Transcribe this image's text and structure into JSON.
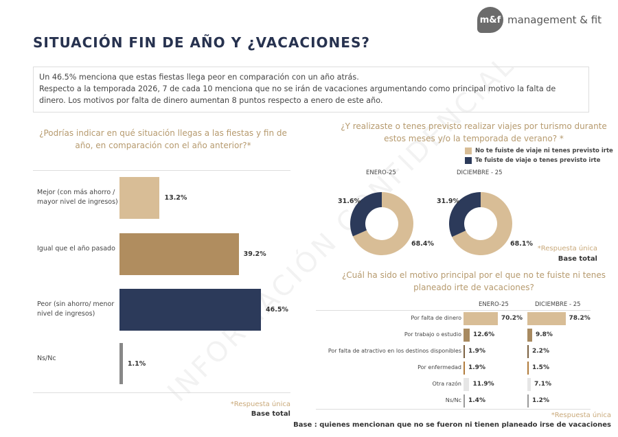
{
  "header": {
    "title": "SITUACIÓN FIN DE AÑO Y ¿VACACIONES?",
    "logo_mark": "m&f",
    "logo_text": "management & fit"
  },
  "summary": {
    "line1": "Un 46.5% menciona que estas fiestas llega peor en comparación con un año atrás.",
    "line2": "Respecto a la temporada 2026, 7 de cada 10 menciona que no se irán de vacaciones argumentando como principal motivo la falta de dinero. Los motivos por falta de dinero aumentan 8 puntos respecto a enero de este año."
  },
  "watermark": "INFORMACIÓN CONFIDENCIAL",
  "colors": {
    "tan": "#d8bd96",
    "brown": "#b08d5f",
    "navy": "#2c3a5a",
    "gray": "#888888",
    "accent_text": "#b69a6e"
  },
  "chart_data": [
    {
      "type": "bar",
      "orientation": "horizontal",
      "title": "¿Podrías indicar en qué situación llegas a las fiestas y fin de año, en comparación con el año anterior?*",
      "categories": [
        "Mejor (con más ahorro / mayor nivel de ingresos)",
        "Igual que el año pasado",
        "Peor (sin ahorro/ menor nivel de ingresos)",
        "Ns/Nc"
      ],
      "values": [
        13.2,
        39.2,
        46.5,
        1.1
      ],
      "labels": [
        "13.2%",
        "39.2%",
        "46.5%",
        "1.1%"
      ],
      "bar_colors": [
        "#d8bd96",
        "#b08d5f",
        "#2c3a5a",
        "#888888"
      ],
      "note": "*Respuesta única",
      "base": "Base total"
    },
    {
      "type": "pie",
      "variant": "donut",
      "title": "¿Y realizaste o tenes previsto realizar viajes por turismo durante estos meses y/o la temporada de verano? *",
      "legend": [
        "No te fuiste de viaje ni tenes previsto irte",
        "Te fuiste de viaje o tenes previsto irte"
      ],
      "series": [
        {
          "name": "ENERO-25",
          "values": [
            68.4,
            31.6
          ],
          "labels": [
            "68.4%",
            "31.6%"
          ]
        },
        {
          "name": "DICIEMBRE - 25",
          "values": [
            68.1,
            31.9
          ],
          "labels": [
            "68.1%",
            "31.9%"
          ]
        }
      ],
      "slice_colors": [
        "#d8bd96",
        "#2c3a5a"
      ],
      "note": "*Respuesta única",
      "base": "Base total"
    },
    {
      "type": "bar",
      "orientation": "horizontal",
      "title": "¿Cuál ha sido el motivo principal por el que no te fuiste ni tenes planeado irte de vacaciones?",
      "categories": [
        "Por falta de dinero",
        "Por trabajo o estudio",
        "Por falta de atractivo en los destinos disponibles",
        "Por enfermedad",
        "Otra razón",
        "Ns/Nc"
      ],
      "series": [
        {
          "name": "ENERO-25",
          "values": [
            70.2,
            12.6,
            1.9,
            1.9,
            11.9,
            1.4
          ],
          "labels": [
            "70.2%",
            "12.6%",
            "1.9%",
            "1.9%",
            "11.9%",
            "1.4%"
          ]
        },
        {
          "name": "DICIEMBRE - 25",
          "values": [
            78.2,
            9.8,
            2.2,
            1.5,
            7.1,
            1.2
          ],
          "labels": [
            "78.2%",
            "9.8%",
            "2.2%",
            "1.5%",
            "7.1%",
            "1.2%"
          ]
        }
      ],
      "bar_colors": [
        "#d8bd96",
        "#a88a60",
        "#7a6040",
        "#b07a3a",
        "#e6e6e6",
        "#999999"
      ],
      "note": "*Respuesta única",
      "base": "Base : quienes mencionan que no se fueron ni tienen planeado irse de vacaciones"
    }
  ]
}
